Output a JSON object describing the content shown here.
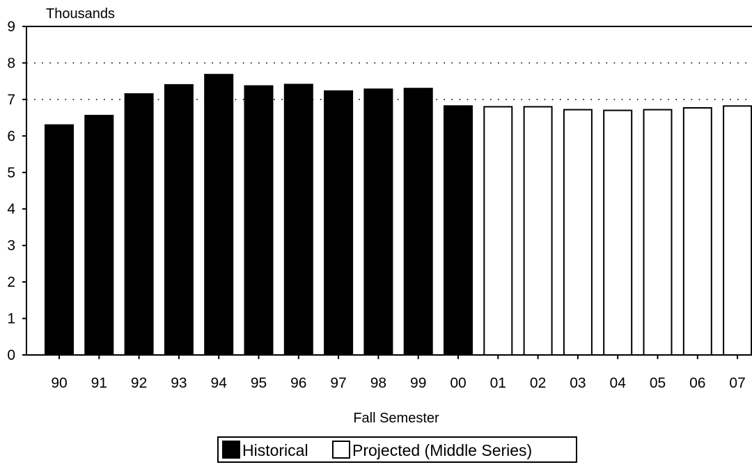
{
  "chart_data": {
    "type": "bar",
    "ylabel": "Thousands",
    "xlabel": "Fall Semester",
    "ylim": [
      0,
      9
    ],
    "yticks": [
      "0",
      "1",
      "2",
      "3",
      "4",
      "5",
      "6",
      "7",
      "8",
      "9"
    ],
    "grid": "dotted horizontal lines at 7 and 8",
    "categories": [
      "90",
      "91",
      "92",
      "93",
      "94",
      "95",
      "96",
      "97",
      "98",
      "99",
      "00",
      "01",
      "02",
      "03",
      "04",
      "05",
      "06",
      "07"
    ],
    "series": [
      {
        "name": "Historical",
        "fill": "#000000",
        "values": [
          6.3,
          6.56,
          7.15,
          7.4,
          7.68,
          7.37,
          7.41,
          7.23,
          7.28,
          7.3,
          6.82,
          null,
          null,
          null,
          null,
          null,
          null,
          null
        ]
      },
      {
        "name": "Projected (Middle Series)",
        "fill": "#ffffff",
        "values": [
          null,
          null,
          null,
          null,
          null,
          null,
          null,
          null,
          null,
          null,
          null,
          6.8,
          6.8,
          6.72,
          6.7,
          6.72,
          6.77,
          6.82
        ]
      }
    ],
    "legend_position": "bottom-center"
  }
}
